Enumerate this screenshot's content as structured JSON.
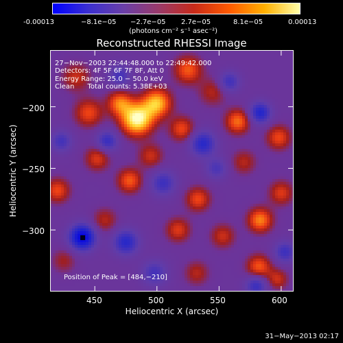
{
  "colorbar": {
    "ticks": [
      "-0.00013",
      "−8.1e−05",
      "−2.7e−05",
      "2.7e−05",
      "8.1e−05",
      "0.00013"
    ],
    "unit": "(photons cm⁻² s⁻¹ asec⁻²)",
    "range": [
      -0.00013,
      0.00013
    ],
    "colors": [
      "#0000ff",
      "#3b2fd0",
      "#6a3fa8",
      "#9a3a6a",
      "#c82a1a",
      "#ff5a00",
      "#ffb000",
      "#ffffaa"
    ]
  },
  "overlay": {
    "time": "27−Nov−2003 22:44:48.000 to 22:49:42.000",
    "detectors": "Detectors: 4F 5F 6F 7F 8F, Att 0",
    "energy": "Energy Range: 25.0 − 50.0 keV",
    "clean": "Clean      Total counts: 5.38E+03",
    "peak": "Position of Peak = [484,−210]"
  },
  "chart_data": {
    "type": "heatmap",
    "title": "Reconstructed RHESSI Image",
    "xlabel": "Heliocentric X (arcsec)",
    "ylabel": "Heliocentric Y (arcsec)",
    "xlim": [
      414,
      610
    ],
    "ylim": [
      -350,
      -154
    ],
    "xticks": [
      450,
      500,
      550,
      600
    ],
    "yticks": [
      -200,
      -250,
      -300
    ],
    "xtick_labels": [
      "450",
      "500",
      "550",
      "600"
    ],
    "ytick_labels": [
      "−200",
      "−250",
      "−300"
    ],
    "peak": [
      484,
      -210
    ],
    "blobs": [
      {
        "x": 484,
        "y": -210,
        "v": 1.0,
        "s": 9
      },
      {
        "x": 500,
        "y": -197,
        "v": 0.75,
        "s": 8
      },
      {
        "x": 470,
        "y": -197,
        "v": 0.55,
        "s": 7
      },
      {
        "x": 445,
        "y": -205,
        "v": 0.45,
        "s": 8
      },
      {
        "x": 435,
        "y": -176,
        "v": 0.35,
        "s": 8
      },
      {
        "x": 525,
        "y": -170,
        "v": 0.5,
        "s": 8
      },
      {
        "x": 520,
        "y": -218,
        "v": 0.45,
        "s": 7
      },
      {
        "x": 545,
        "y": -188,
        "v": 0.3,
        "s": 8
      },
      {
        "x": 495,
        "y": -240,
        "v": 0.35,
        "s": 7
      },
      {
        "x": 452,
        "y": -242,
        "v": 0.4,
        "s": 7
      },
      {
        "x": 478,
        "y": -260,
        "v": 0.5,
        "s": 7
      },
      {
        "x": 420,
        "y": -268,
        "v": 0.45,
        "s": 7
      },
      {
        "x": 565,
        "y": -212,
        "v": 0.55,
        "s": 7
      },
      {
        "x": 598,
        "y": -225,
        "v": 0.45,
        "s": 7
      },
      {
        "x": 570,
        "y": -245,
        "v": 0.3,
        "s": 7
      },
      {
        "x": 533,
        "y": -275,
        "v": 0.45,
        "s": 7
      },
      {
        "x": 517,
        "y": -300,
        "v": 0.4,
        "s": 7
      },
      {
        "x": 553,
        "y": -305,
        "v": 0.35,
        "s": 7
      },
      {
        "x": 583,
        "y": -292,
        "v": 0.6,
        "s": 7
      },
      {
        "x": 600,
        "y": -270,
        "v": 0.4,
        "s": 7
      },
      {
        "x": 582,
        "y": -330,
        "v": 0.5,
        "s": 7
      },
      {
        "x": 532,
        "y": -335,
        "v": 0.3,
        "s": 7
      },
      {
        "x": 458,
        "y": -292,
        "v": 0.3,
        "s": 7
      },
      {
        "x": 425,
        "y": -325,
        "v": 0.25,
        "s": 7
      },
      {
        "x": 597,
        "y": -340,
        "v": 0.35,
        "s": 6
      },
      {
        "x": 440,
        "y": -306,
        "v": -1.0,
        "s": 7
      },
      {
        "x": 475,
        "y": -310,
        "v": -0.6,
        "s": 7
      },
      {
        "x": 537,
        "y": -230,
        "v": -0.6,
        "s": 7
      },
      {
        "x": 583,
        "y": -205,
        "v": -0.65,
        "s": 6
      },
      {
        "x": 558,
        "y": -180,
        "v": -0.45,
        "s": 6
      },
      {
        "x": 505,
        "y": -262,
        "v": -0.45,
        "s": 7
      },
      {
        "x": 460,
        "y": -228,
        "v": -0.5,
        "s": 6
      },
      {
        "x": 423,
        "y": -228,
        "v": -0.4,
        "s": 6
      },
      {
        "x": 580,
        "y": -345,
        "v": -0.5,
        "s": 6
      },
      {
        "x": 603,
        "y": -318,
        "v": -0.45,
        "s": 6
      },
      {
        "x": 498,
        "y": -335,
        "v": -0.4,
        "s": 7
      },
      {
        "x": 548,
        "y": -250,
        "v": -0.35,
        "s": 6
      },
      {
        "x": 470,
        "y": -175,
        "v": -0.4,
        "s": 6
      }
    ]
  },
  "footer": {
    "timestamp": "31−May−2013 02:17"
  }
}
